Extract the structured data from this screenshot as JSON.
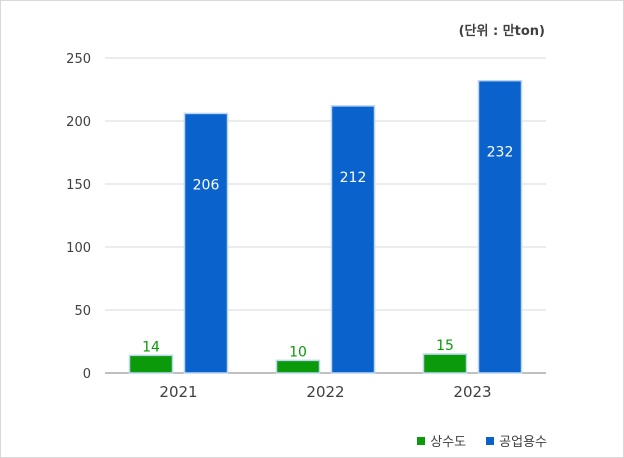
{
  "unit_label": "(단위 : 만ton)",
  "colors": {
    "water_supply": "#0a9a0a",
    "industrial_water": "#0a62cc",
    "water_supply_label": "#0a9a0a",
    "gridline": "#d9d9d9",
    "axis_text": "#404040"
  },
  "chart_data": {
    "type": "bar",
    "categories": [
      "2021",
      "2022",
      "2023"
    ],
    "series": [
      {
        "name": "상수도",
        "values": [
          14,
          10,
          15
        ]
      },
      {
        "name": "공업용수",
        "values": [
          206,
          212,
          232
        ]
      }
    ],
    "ylim": [
      0,
      250
    ],
    "yticks": [
      0,
      50,
      100,
      150,
      200,
      250
    ],
    "grid": true,
    "legend_position": "bottom-right"
  }
}
